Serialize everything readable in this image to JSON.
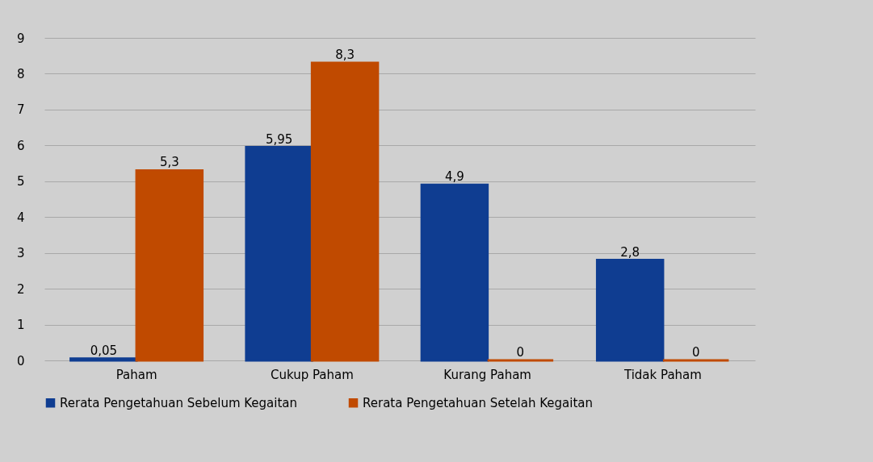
{
  "chart_data": {
    "type": "bar",
    "categories": [
      "Paham",
      "Cukup Paham",
      "Kurang Paham",
      "Tidak Paham"
    ],
    "series": [
      {
        "name": "Rerata Pengetahuan Sebelum Kegaitan",
        "color": "#0f3d91",
        "values": [
          0.05,
          5.95,
          4.9,
          2.8
        ],
        "value_labels": [
          "0,05",
          "5,95",
          "4,9",
          "2,8"
        ]
      },
      {
        "name": "Rerata Pengetahuan Setelah Kegaitan",
        "color": "#c04a00",
        "values": [
          5.3,
          8.3,
          0,
          0
        ],
        "value_labels": [
          "5,3",
          "8,3",
          "0",
          "0"
        ]
      }
    ],
    "ylim": [
      0,
      9
    ],
    "yticks": [
      0,
      1,
      2,
      3,
      4,
      5,
      6,
      7,
      8,
      9
    ],
    "grid": "y",
    "legend": "bottom"
  }
}
